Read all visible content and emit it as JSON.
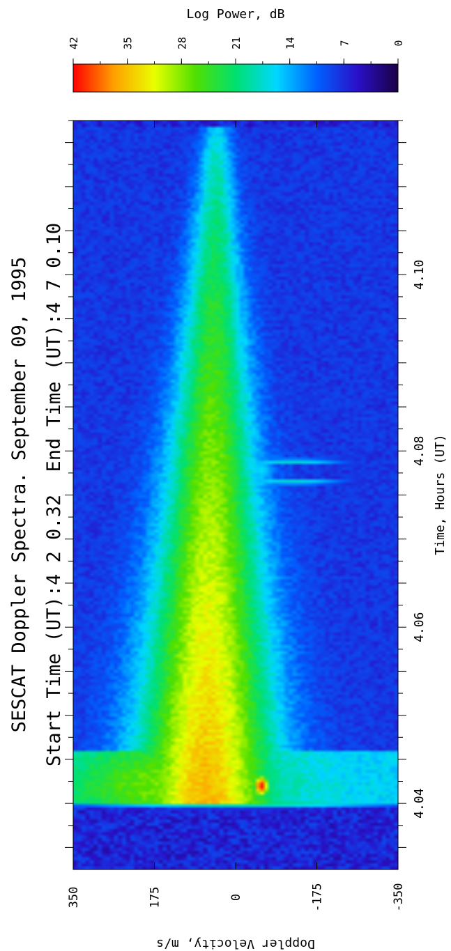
{
  "chart_data": {
    "type": "heatmap",
    "title": "SESCAT Doppler Spectra. September 09, 1995",
    "subtitle": "Start Time (UT):4 2 0.32  End Time (UT):4 7 0.10",
    "xlabel": "Time, Hours (UT)",
    "ylabel": "Doppler Velocity, m/s",
    "x_ticks": [
      "4.04",
      "4.06",
      "4.08",
      "4.10"
    ],
    "y_ticks": [
      "350",
      "175",
      "0",
      "-175",
      "-350"
    ],
    "xlim": [
      4.0325,
      4.1175
    ],
    "ylim": [
      -350,
      350
    ],
    "colorbar": {
      "label": "Log Power, dB",
      "ticks": [
        "42",
        "35",
        "28",
        "21",
        "14",
        "7",
        "0"
      ],
      "range": [
        0,
        42
      ],
      "colors": [
        "#1a0044",
        "#2a10c8",
        "#0060ff",
        "#00d8ff",
        "#00e070",
        "#50e000",
        "#e8ff00",
        "#ffa000",
        "#ff0000"
      ]
    },
    "features": {
      "onset_time": 4.04,
      "main_echo_peak_velocity": 65,
      "main_echo_peak_db": 30,
      "secondary_echo_velocity": -55,
      "secondary_echo_time": 4.042,
      "secondary_echo_peak_db": 42,
      "spike_times": [
        4.0765,
        4.0788
      ],
      "end_time": 4.1168
    }
  }
}
